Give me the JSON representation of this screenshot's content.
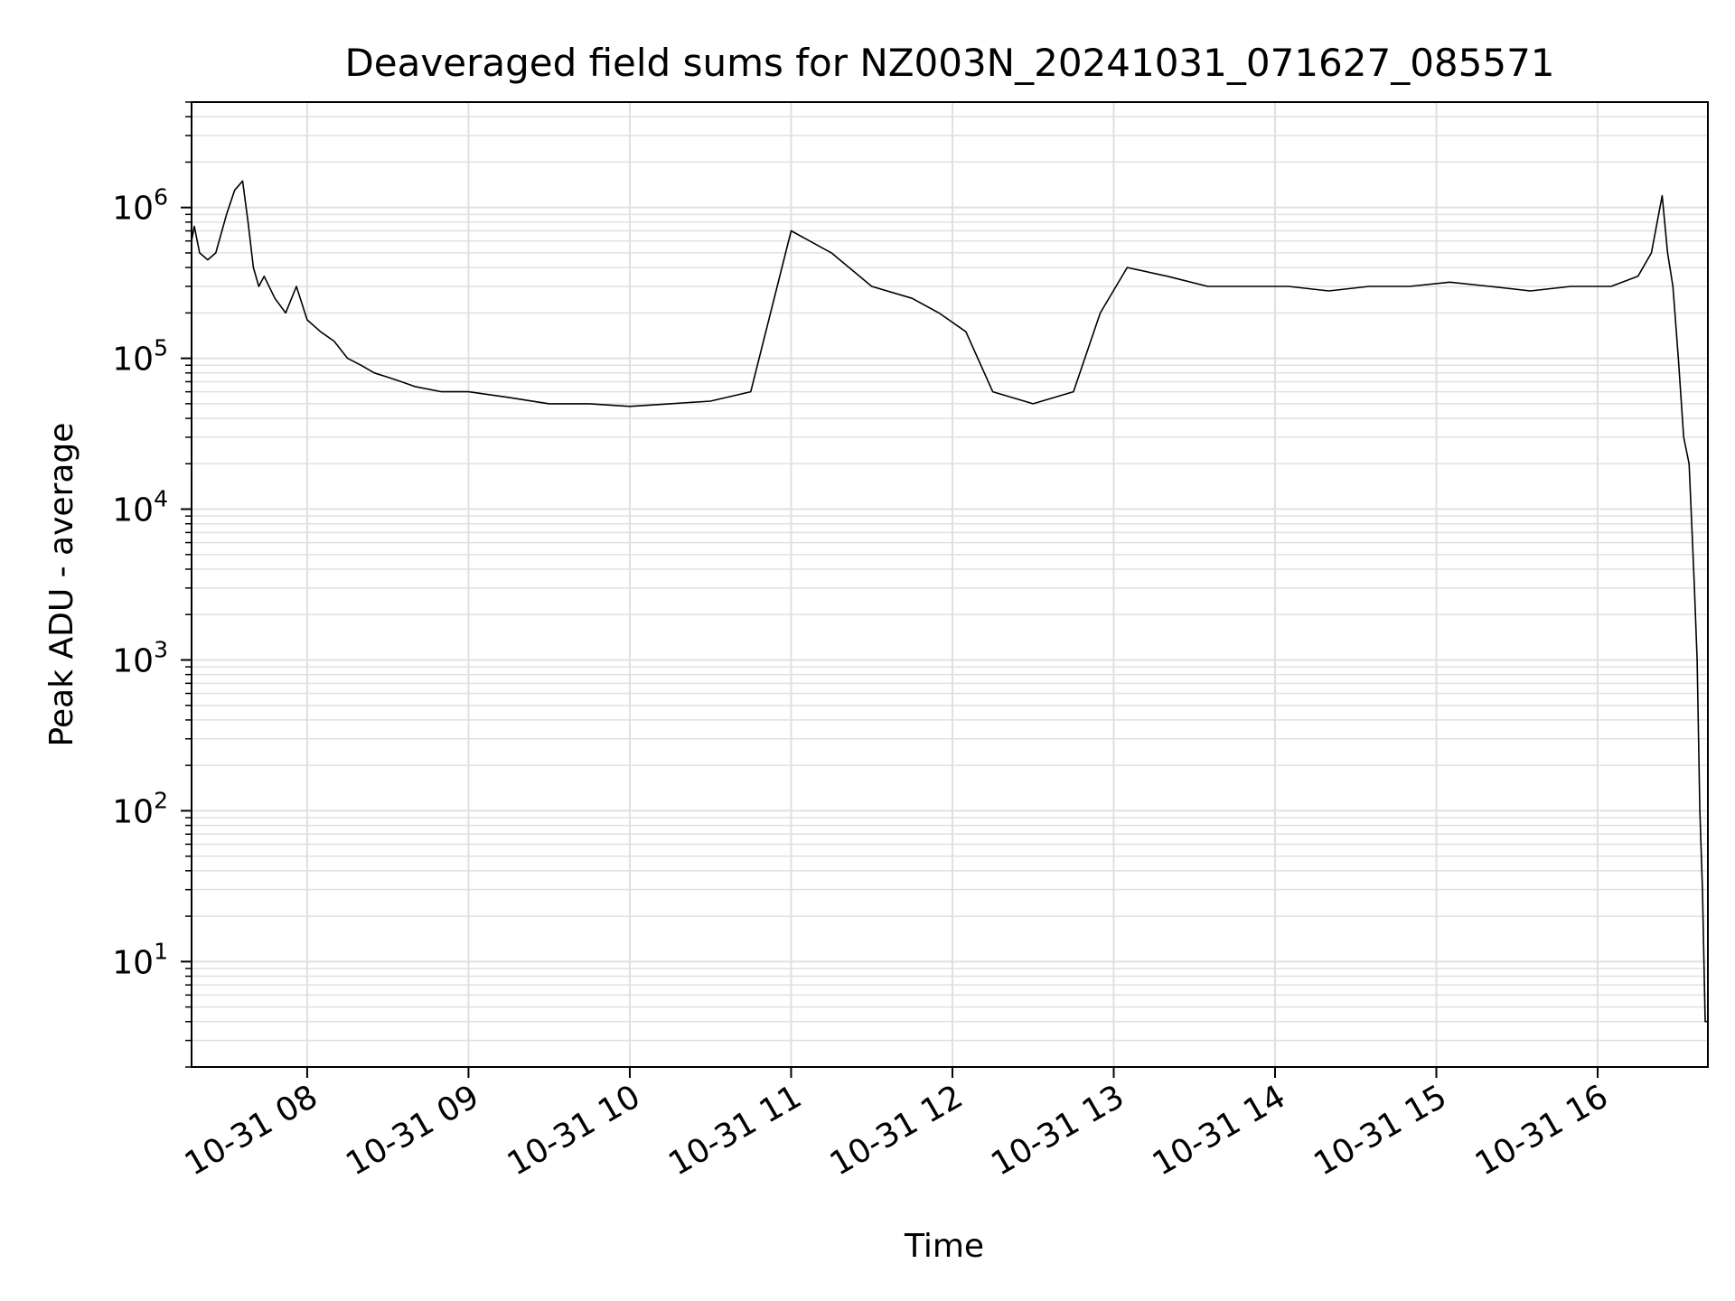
{
  "chart_data": {
    "type": "line",
    "title": "Deaveraged field sums for NZ003N_20241031_071627_085571",
    "xlabel": "Time",
    "ylabel": "Peak ADU - average",
    "x_scale": "time",
    "y_scale": "log",
    "xlim": [
      "2024-10-31 07:17",
      "2024-10-31 16:41"
    ],
    "ylim": [
      2,
      5000000
    ],
    "x_tick_labels": [
      "10-31 08",
      "10-31 09",
      "10-31 10",
      "10-31 11",
      "10-31 12",
      "10-31 13",
      "10-31 14",
      "10-31 15",
      "10-31 16"
    ],
    "y_tick_labels": [
      {
        "base": "10",
        "exp": "1"
      },
      {
        "base": "10",
        "exp": "2"
      },
      {
        "base": "10",
        "exp": "3"
      },
      {
        "base": "10",
        "exp": "4"
      },
      {
        "base": "10",
        "exp": "5"
      },
      {
        "base": "10",
        "exp": "6"
      }
    ],
    "grid": true,
    "line_color": "#000000",
    "grid_color": "#e0e0e0",
    "series": [
      {
        "x": [
          "2024-10-31 07:17",
          "2024-10-31 07:18",
          "2024-10-31 07:20",
          "2024-10-31 07:23",
          "2024-10-31 07:26",
          "2024-10-31 07:30",
          "2024-10-31 07:33",
          "2024-10-31 07:36",
          "2024-10-31 07:38",
          "2024-10-31 07:40",
          "2024-10-31 07:42",
          "2024-10-31 07:44",
          "2024-10-31 07:48",
          "2024-10-31 07:52",
          "2024-10-31 07:56",
          "2024-10-31 08:00",
          "2024-10-31 08:05",
          "2024-10-31 08:10",
          "2024-10-31 08:15",
          "2024-10-31 08:20",
          "2024-10-31 08:25",
          "2024-10-31 08:30",
          "2024-10-31 08:35",
          "2024-10-31 08:40",
          "2024-10-31 08:50",
          "2024-10-31 09:00",
          "2024-10-31 09:15",
          "2024-10-31 09:30",
          "2024-10-31 09:45",
          "2024-10-31 10:00",
          "2024-10-31 10:15",
          "2024-10-31 10:30",
          "2024-10-31 10:45",
          "2024-10-31 11:00",
          "2024-10-31 11:15",
          "2024-10-31 11:30",
          "2024-10-31 11:45",
          "2024-10-31 11:55",
          "2024-10-31 12:05",
          "2024-10-31 12:15",
          "2024-10-31 12:30",
          "2024-10-31 12:45",
          "2024-10-31 12:55",
          "2024-10-31 13:05",
          "2024-10-31 13:20",
          "2024-10-31 13:35",
          "2024-10-31 13:50",
          "2024-10-31 14:05",
          "2024-10-31 14:20",
          "2024-10-31 14:35",
          "2024-10-31 14:50",
          "2024-10-31 15:05",
          "2024-10-31 15:20",
          "2024-10-31 15:35",
          "2024-10-31 15:50",
          "2024-10-31 16:05",
          "2024-10-31 16:15",
          "2024-10-31 16:20",
          "2024-10-31 16:24",
          "2024-10-31 16:26",
          "2024-10-31 16:28",
          "2024-10-31 16:30",
          "2024-10-31 16:32",
          "2024-10-31 16:34",
          "2024-10-31 16:35",
          "2024-10-31 16:36",
          "2024-10-31 16:37",
          "2024-10-31 16:38",
          "2024-10-31 16:39",
          "2024-10-31 16:40",
          "2024-10-31 16:41"
        ],
        "y": [
          600000,
          750000,
          500000,
          450000,
          500000,
          900000,
          1300000,
          1500000,
          800000,
          400000,
          300000,
          350000,
          250000,
          200000,
          300000,
          180000,
          150000,
          130000,
          100000,
          90000,
          80000,
          75000,
          70000,
          65000,
          60000,
          60000,
          55000,
          50000,
          50000,
          48000,
          50000,
          52000,
          60000,
          700000,
          500000,
          300000,
          250000,
          200000,
          150000,
          60000,
          50000,
          60000,
          200000,
          400000,
          350000,
          300000,
          300000,
          300000,
          280000,
          300000,
          300000,
          320000,
          300000,
          280000,
          300000,
          300000,
          350000,
          500000,
          1200000,
          500000,
          300000,
          100000,
          30000,
          20000,
          8000,
          3000,
          1000,
          100,
          30,
          4,
          4
        ]
      }
    ]
  }
}
